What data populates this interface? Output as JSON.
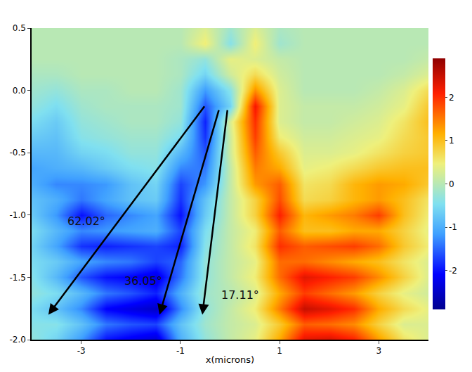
{
  "chart_data": {
    "type": "heatmap",
    "x_label": "x(microns)",
    "x": [
      -4,
      -3.5,
      -3,
      -2.5,
      -2,
      -1.5,
      -1,
      -0.5,
      0,
      0.5,
      1,
      1.5,
      2,
      2.5,
      3,
      3.5,
      4
    ],
    "y": [
      -2,
      -1.875,
      -1.75,
      -1.625,
      -1.5,
      -1.375,
      -1.25,
      -1.125,
      -1,
      -0.875,
      -0.75,
      -0.625,
      -0.5,
      -0.375,
      -0.25,
      -0.125,
      0,
      0.125,
      0.25,
      0.375,
      0.5
    ],
    "z": [
      [
        -0.3,
        -0.6,
        -1.2,
        -2.0,
        -2.2,
        -2.4,
        -1.0,
        -0.3,
        0.1,
        0.4,
        1.2,
        2.3,
        2.4,
        2.1,
        1.3,
        0.6,
        0.3
      ],
      [
        -0.4,
        -0.4,
        -0.8,
        -1.4,
        -1.6,
        -1.7,
        -0.8,
        -0.2,
        0.1,
        0.3,
        0.9,
        1.7,
        1.6,
        1.4,
        0.8,
        0.3,
        0.3
      ],
      [
        -0.5,
        -0.8,
        -1.3,
        -2.1,
        -2.3,
        -2.5,
        -1.3,
        -0.3,
        0.1,
        0.5,
        1.5,
        2.5,
        2.3,
        2.0,
        1.2,
        0.7,
        0.4
      ],
      [
        -0.3,
        -0.5,
        -0.9,
        -1.4,
        -1.6,
        -1.9,
        -1.0,
        -0.2,
        0.0,
        0.3,
        1.2,
        1.9,
        1.6,
        1.3,
        0.8,
        0.4,
        0.2
      ],
      [
        -0.4,
        -0.9,
        -1.6,
        -2.0,
        -2.1,
        -2.3,
        -1.4,
        -0.3,
        0.1,
        0.5,
        1.6,
        2.3,
        2.1,
        1.9,
        1.4,
        0.8,
        0.3
      ],
      [
        -0.5,
        -0.7,
        -1.1,
        -1.3,
        -1.4,
        -1.7,
        -1.5,
        -0.3,
        0.1,
        0.4,
        1.6,
        1.6,
        1.4,
        1.2,
        1.0,
        0.6,
        0.3
      ],
      [
        -0.6,
        -1.1,
        -1.8,
        -1.9,
        -1.8,
        -1.7,
        -1.9,
        -0.4,
        0.1,
        0.6,
        2.0,
        1.7,
        1.8,
        1.9,
        1.6,
        0.9,
        0.5
      ],
      [
        -0.5,
        -0.9,
        -1.3,
        -1.2,
        -1.1,
        -1.0,
        -1.7,
        -0.5,
        0.1,
        0.5,
        1.7,
        1.0,
        1.0,
        1.2,
        1.2,
        0.8,
        0.4
      ],
      [
        -0.7,
        -1.2,
        -2.0,
        -1.5,
        -1.3,
        -1.1,
        -2.0,
        -0.7,
        0.1,
        0.8,
        2.1,
        1.1,
        1.3,
        1.5,
        1.9,
        1.0,
        0.5
      ],
      [
        -0.8,
        -1.0,
        -1.4,
        -1.1,
        -0.8,
        -0.7,
        -1.8,
        -0.8,
        0.1,
        0.8,
        1.8,
        0.7,
        0.8,
        1.1,
        1.3,
        1.0,
        0.6
      ],
      [
        -1.0,
        -1.3,
        -1.3,
        -1.2,
        -0.8,
        -0.6,
        -1.7,
        -1.2,
        0.1,
        1.3,
        1.7,
        0.6,
        0.7,
        1.1,
        1.3,
        1.2,
        0.9
      ],
      [
        -1.1,
        -1.0,
        -0.9,
        -0.7,
        -0.5,
        -0.4,
        -1.3,
        -1.4,
        0.1,
        1.5,
        1.2,
        0.4,
        0.5,
        0.7,
        0.9,
        1.0,
        1.0
      ],
      [
        -0.9,
        -0.9,
        -0.6,
        -0.5,
        -0.3,
        -0.3,
        -0.9,
        -1.6,
        0.2,
        1.7,
        0.9,
        0.3,
        0.3,
        0.4,
        0.6,
        0.8,
        0.9
      ],
      [
        -0.7,
        -0.8,
        -0.4,
        -0.3,
        -0.2,
        -0.2,
        -0.5,
        -1.8,
        0.2,
        1.9,
        0.5,
        0.2,
        0.2,
        0.3,
        0.4,
        0.7,
        0.9
      ],
      [
        -0.5,
        -0.7,
        -0.3,
        -0.2,
        -0.1,
        -0.1,
        -0.3,
        -1.9,
        0.3,
        2.0,
        0.3,
        0.1,
        0.1,
        0.2,
        0.3,
        0.6,
        1.0
      ],
      [
        -0.3,
        -0.5,
        -0.2,
        -0.1,
        -0.1,
        -0.1,
        -0.2,
        -1.6,
        -0.6,
        2.2,
        0.3,
        0.1,
        0.1,
        0.1,
        0.2,
        0.4,
        0.9
      ],
      [
        -0.2,
        -0.3,
        -0.1,
        -0.1,
        0.0,
        0.0,
        -0.2,
        -1.2,
        -0.4,
        1.4,
        0.3,
        0.0,
        0.0,
        0.0,
        0.1,
        0.3,
        0.7
      ],
      [
        -0.1,
        -0.1,
        0.0,
        0.0,
        0.0,
        0.0,
        -0.1,
        -0.6,
        0.2,
        0.7,
        0.2,
        0.0,
        0.0,
        0.0,
        0.0,
        0.1,
        0.3
      ],
      [
        0.0,
        0.0,
        0.0,
        0.0,
        0.0,
        0.0,
        -0.1,
        -0.3,
        0.4,
        0.3,
        0.1,
        0.0,
        0.0,
        0.0,
        0.0,
        0.0,
        0.1
      ],
      [
        0.0,
        0.0,
        0.0,
        0.0,
        0.0,
        0.0,
        0.0,
        0.5,
        -0.4,
        0.5,
        -0.2,
        0.0,
        0.0,
        0.0,
        0.0,
        0.0,
        0.0
      ],
      [
        0.0,
        0.0,
        0.0,
        0.0,
        0.0,
        0.0,
        0.0,
        0.3,
        -0.2,
        0.3,
        -0.1,
        0.0,
        0.0,
        0.0,
        0.0,
        0.0,
        0.0
      ]
    ],
    "xlim": [
      -4,
      4
    ],
    "xticks": [
      -3,
      -1,
      1,
      3
    ],
    "ylim": [
      -2,
      0.5
    ],
    "yticks": [
      {
        "value": -2,
        "label": "-2.0"
      },
      {
        "value": -1.5,
        "label": "-1.5"
      },
      {
        "value": -1,
        "label": "-1.0"
      },
      {
        "value": -0.5,
        "label": "-0.5"
      },
      {
        "value": 0,
        "label": "0.0"
      },
      0.5
    ],
    "zlim": [
      -2.9,
      2.9
    ],
    "zticks": [
      -2,
      -1,
      0,
      1,
      2
    ],
    "annotations": [
      {
        "text": "62.02°",
        "value": 62.02
      },
      {
        "text": "36.05°",
        "value": 36.05
      },
      {
        "text": "17.11°",
        "value": 17.11
      }
    ]
  }
}
